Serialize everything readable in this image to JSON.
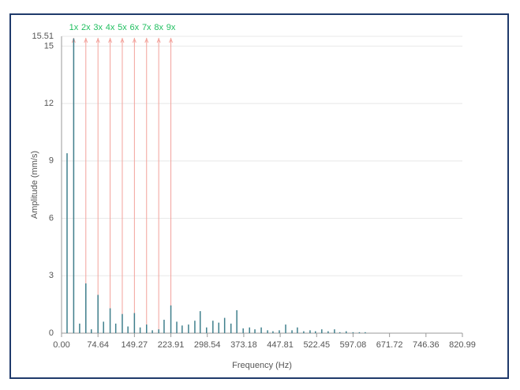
{
  "chart_data": {
    "type": "stem",
    "y_label": "Amplitude (mm/s)",
    "x_label": "Frequency (Hz)",
    "color": "#3f7f8c",
    "harmonic_color": "#f3a29b",
    "harmonic_label_color": "#1fbf5f",
    "grid": true,
    "xlim": [
      0,
      820.99
    ],
    "ylim": [
      0,
      15.51
    ],
    "xticks": [
      {
        "value": 0,
        "label": "0.00"
      },
      74.64,
      149.27,
      223.91,
      298.54,
      373.18,
      447.81,
      522.45,
      597.08,
      671.72,
      746.36,
      820.99
    ],
    "yticks": [
      0,
      3,
      6,
      9,
      12,
      15,
      15.51
    ],
    "harmonics": [
      {
        "label": "1x",
        "x": 24.88
      },
      {
        "label": "2x",
        "x": 49.76
      },
      {
        "label": "3x",
        "x": 74.64
      },
      {
        "label": "4x",
        "x": 99.52
      },
      {
        "label": "5x",
        "x": 124.4
      },
      {
        "label": "6x",
        "x": 149.27
      },
      {
        "label": "7x",
        "x": 174.15
      },
      {
        "label": "8x",
        "x": 199.03
      },
      {
        "label": "9x",
        "x": 223.91
      }
    ],
    "x": [
      11.3,
      24.88,
      37,
      49.76,
      61,
      74.64,
      86,
      99.52,
      111,
      124.4,
      136,
      149.27,
      161,
      174.15,
      186,
      199.03,
      210,
      223.91,
      236,
      247,
      260,
      273,
      284,
      297,
      310,
      322,
      334,
      347,
      359,
      372,
      385,
      396,
      409,
      422,
      433,
      446,
      459,
      472,
      483,
      496,
      509,
      520,
      533,
      546,
      559,
      570,
      583,
      597,
      610,
      622
    ],
    "values": [
      9.4,
      15.4,
      0.5,
      2.6,
      0.2,
      2.0,
      0.6,
      1.3,
      0.5,
      1.0,
      0.35,
      1.05,
      0.3,
      0.45,
      0.15,
      0.2,
      0.7,
      1.45,
      0.6,
      0.4,
      0.45,
      0.65,
      1.15,
      0.3,
      0.65,
      0.55,
      0.8,
      0.5,
      1.2,
      0.25,
      0.3,
      0.2,
      0.3,
      0.15,
      0.1,
      0.15,
      0.45,
      0.15,
      0.3,
      0.1,
      0.15,
      0.1,
      0.2,
      0.1,
      0.2,
      0.05,
      0.1,
      0.05,
      0.05,
      0.05
    ]
  }
}
